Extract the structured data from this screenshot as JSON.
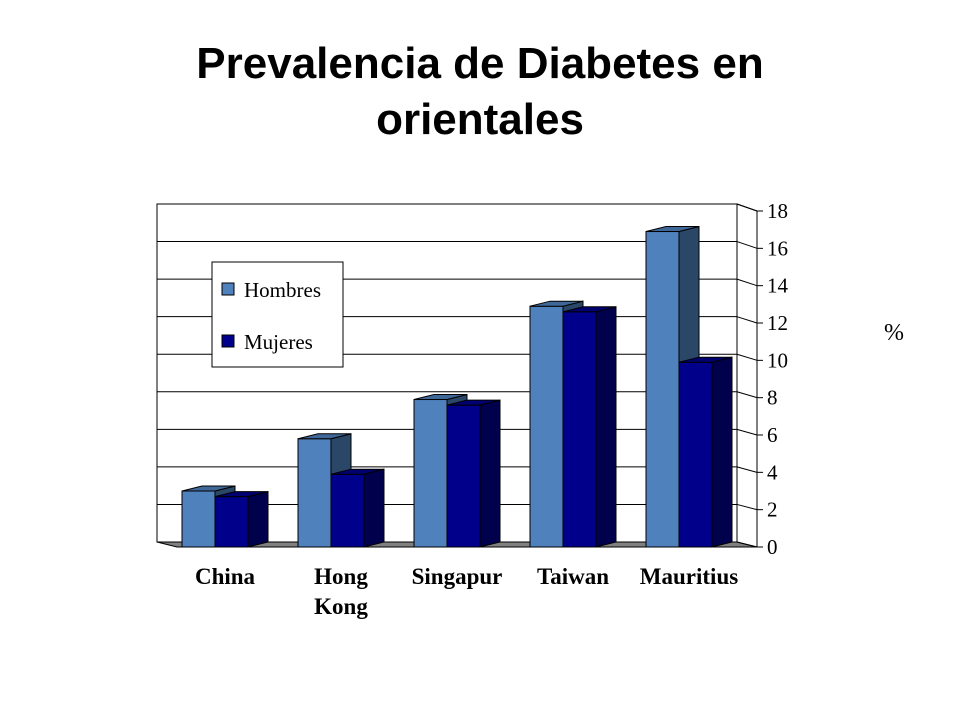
{
  "chart_data": {
    "type": "bar",
    "title": [
      "Prevalencia de Diabetes en",
      "orientales"
    ],
    "categories": [
      [
        "China"
      ],
      [
        "Hong",
        "Kong"
      ],
      [
        "Singapur"
      ],
      [
        "Taiwan"
      ],
      [
        "Mauritius"
      ]
    ],
    "series": [
      {
        "name": "Hombres",
        "values": [
          3,
          5.8,
          7.9,
          12.9,
          16.9
        ],
        "color": "#4f81bd"
      },
      {
        "name": "Mujeres",
        "values": [
          2.7,
          3.9,
          7.6,
          12.6,
          9.9
        ],
        "color": "#00008b"
      }
    ],
    "ylim": [
      0,
      18
    ],
    "yticks": [
      0,
      2,
      4,
      6,
      8,
      10,
      12,
      14,
      16,
      18
    ],
    "yaxis_position": "right",
    "ylabel": "%",
    "grid": true,
    "legend_position": "top-left",
    "style": "3d-clustered"
  }
}
